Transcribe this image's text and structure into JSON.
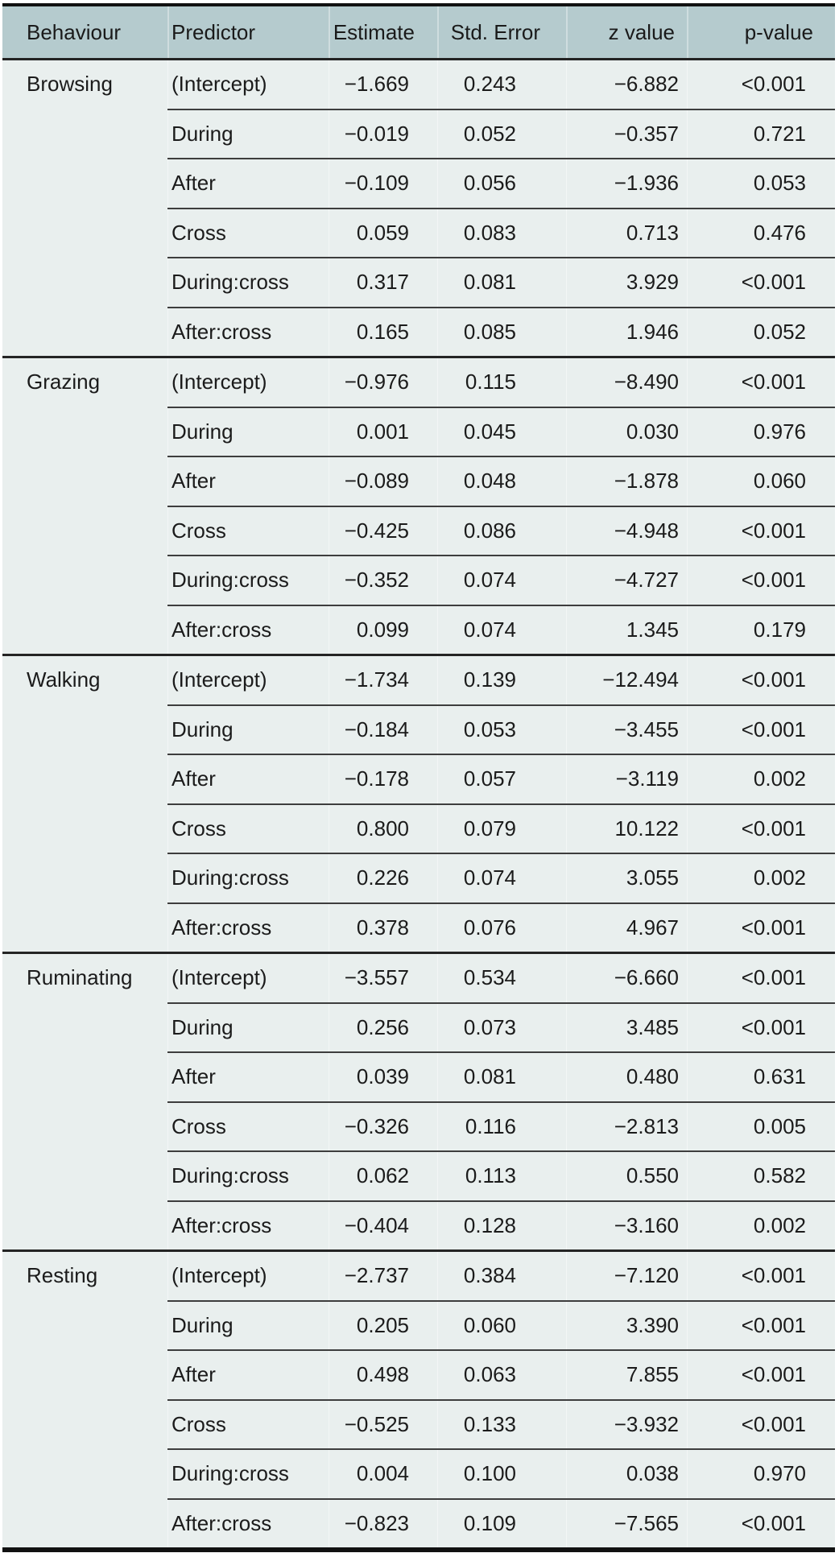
{
  "table": {
    "columns": [
      "Behaviour",
      "Predictor",
      "Estimate",
      "Std. Error",
      "z value",
      "p-value"
    ],
    "groups": [
      {
        "behaviour": "Browsing",
        "rows": [
          {
            "predictor": "(Intercept)",
            "estimate": "−1.669",
            "std_error": "0.243",
            "z_value": "−6.882",
            "p_value": "<0.001"
          },
          {
            "predictor": "During",
            "estimate": "−0.019",
            "std_error": "0.052",
            "z_value": "−0.357",
            "p_value": "0.721"
          },
          {
            "predictor": "After",
            "estimate": "−0.109",
            "std_error": "0.056",
            "z_value": "−1.936",
            "p_value": "0.053"
          },
          {
            "predictor": "Cross",
            "estimate": "0.059",
            "std_error": "0.083",
            "z_value": "0.713",
            "p_value": "0.476"
          },
          {
            "predictor": "During:cross",
            "estimate": "0.317",
            "std_error": "0.081",
            "z_value": "3.929",
            "p_value": "<0.001"
          },
          {
            "predictor": "After:cross",
            "estimate": "0.165",
            "std_error": "0.085",
            "z_value": "1.946",
            "p_value": "0.052"
          }
        ]
      },
      {
        "behaviour": "Grazing",
        "rows": [
          {
            "predictor": "(Intercept)",
            "estimate": "−0.976",
            "std_error": "0.115",
            "z_value": "−8.490",
            "p_value": "<0.001"
          },
          {
            "predictor": "During",
            "estimate": "0.001",
            "std_error": "0.045",
            "z_value": "0.030",
            "p_value": "0.976"
          },
          {
            "predictor": "After",
            "estimate": "−0.089",
            "std_error": "0.048",
            "z_value": "−1.878",
            "p_value": "0.060"
          },
          {
            "predictor": "Cross",
            "estimate": "−0.425",
            "std_error": "0.086",
            "z_value": "−4.948",
            "p_value": "<0.001"
          },
          {
            "predictor": "During:cross",
            "estimate": "−0.352",
            "std_error": "0.074",
            "z_value": "−4.727",
            "p_value": "<0.001"
          },
          {
            "predictor": "After:cross",
            "estimate": "0.099",
            "std_error": "0.074",
            "z_value": "1.345",
            "p_value": "0.179"
          }
        ]
      },
      {
        "behaviour": "Walking",
        "rows": [
          {
            "predictor": "(Intercept)",
            "estimate": "−1.734",
            "std_error": "0.139",
            "z_value": "−12.494",
            "p_value": "<0.001"
          },
          {
            "predictor": "During",
            "estimate": "−0.184",
            "std_error": "0.053",
            "z_value": "−3.455",
            "p_value": "<0.001"
          },
          {
            "predictor": "After",
            "estimate": "−0.178",
            "std_error": "0.057",
            "z_value": "−3.119",
            "p_value": "0.002"
          },
          {
            "predictor": "Cross",
            "estimate": "0.800",
            "std_error": "0.079",
            "z_value": "10.122",
            "p_value": "<0.001"
          },
          {
            "predictor": "During:cross",
            "estimate": "0.226",
            "std_error": "0.074",
            "z_value": "3.055",
            "p_value": "0.002"
          },
          {
            "predictor": "After:cross",
            "estimate": "0.378",
            "std_error": "0.076",
            "z_value": "4.967",
            "p_value": "<0.001"
          }
        ]
      },
      {
        "behaviour": "Ruminating",
        "rows": [
          {
            "predictor": "(Intercept)",
            "estimate": "−3.557",
            "std_error": "0.534",
            "z_value": "−6.660",
            "p_value": "<0.001"
          },
          {
            "predictor": "During",
            "estimate": "0.256",
            "std_error": "0.073",
            "z_value": "3.485",
            "p_value": "<0.001"
          },
          {
            "predictor": "After",
            "estimate": "0.039",
            "std_error": "0.081",
            "z_value": "0.480",
            "p_value": "0.631"
          },
          {
            "predictor": "Cross",
            "estimate": "−0.326",
            "std_error": "0.116",
            "z_value": "−2.813",
            "p_value": "0.005"
          },
          {
            "predictor": "During:cross",
            "estimate": "0.062",
            "std_error": "0.113",
            "z_value": "0.550",
            "p_value": "0.582"
          },
          {
            "predictor": "After:cross",
            "estimate": "−0.404",
            "std_error": "0.128",
            "z_value": "−3.160",
            "p_value": "0.002"
          }
        ]
      },
      {
        "behaviour": "Resting",
        "rows": [
          {
            "predictor": "(Intercept)",
            "estimate": "−2.737",
            "std_error": "0.384",
            "z_value": "−7.120",
            "p_value": "<0.001"
          },
          {
            "predictor": "During",
            "estimate": "0.205",
            "std_error": "0.060",
            "z_value": "3.390",
            "p_value": "<0.001"
          },
          {
            "predictor": "After",
            "estimate": "0.498",
            "std_error": "0.063",
            "z_value": "7.855",
            "p_value": "<0.001"
          },
          {
            "predictor": "Cross",
            "estimate": "−0.525",
            "std_error": "0.133",
            "z_value": "−3.932",
            "p_value": "<0.001"
          },
          {
            "predictor": "During:cross",
            "estimate": "0.004",
            "std_error": "0.100",
            "z_value": "0.038",
            "p_value": "0.970"
          },
          {
            "predictor": "After:cross",
            "estimate": "−0.823",
            "std_error": "0.109",
            "z_value": "−7.565",
            "p_value": "<0.001"
          }
        ]
      }
    ]
  },
  "colors": {
    "header_background": "#b5cbce",
    "body_background": "#e9efee",
    "outer_border": "#111111",
    "group_separator": "#242424",
    "row_separator": "#3d3d3d",
    "text": "#1b1b1b"
  }
}
